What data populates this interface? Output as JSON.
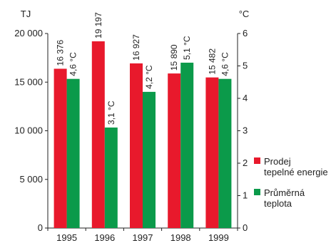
{
  "chart_data": {
    "type": "bar",
    "categories": [
      "1995",
      "1996",
      "1997",
      "1998",
      "1999"
    ],
    "y_left": {
      "unit": "TJ",
      "range": [
        0,
        20000
      ],
      "ticks": [
        0,
        5000,
        10000,
        15000,
        20000
      ],
      "tick_labels": [
        "0",
        "5 000",
        "10 000",
        "15 000",
        "20 000"
      ]
    },
    "y_right": {
      "unit": "°C",
      "range": [
        0,
        6
      ],
      "ticks": [
        0,
        1,
        2,
        3,
        4,
        5,
        6
      ],
      "tick_labels": [
        "0",
        "1",
        "2",
        "3",
        "4",
        "5",
        "6"
      ]
    },
    "series": [
      {
        "name": "Prodej tepelné energie",
        "axis": "left",
        "color": "#e8192c",
        "values": [
          16376,
          19197,
          16927,
          15890,
          15482
        ],
        "labels": [
          "16 376",
          "19 197",
          "16 927",
          "15 890",
          "15 482"
        ]
      },
      {
        "name": "Průměrná teplota",
        "axis": "right",
        "color": "#0b9a4a",
        "values": [
          4.6,
          3.1,
          4.2,
          5.1,
          4.6
        ],
        "labels": [
          "4,6 °C",
          "3,1 °C",
          "4,2 °C",
          "5,1 °C",
          "4,6 °C"
        ]
      }
    ],
    "legend": {
      "position": "right",
      "items": [
        {
          "lines": [
            "Prodej",
            "tepelné energie"
          ],
          "color": "#e8192c"
        },
        {
          "lines": [
            "Průměrná",
            "teplota"
          ],
          "color": "#0b9a4a"
        }
      ]
    },
    "grid": false
  }
}
